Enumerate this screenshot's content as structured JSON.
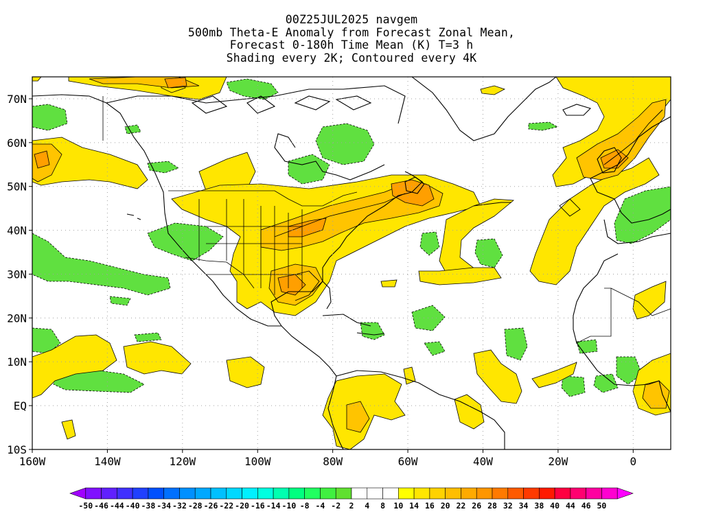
{
  "title": {
    "lines": [
      "00Z25JUL2025 navgem",
      "500mb Theta-E Anomaly from Forecast Zonal Mean,",
      "Forecast 0-180h Time Mean (K) T=3 h",
      "Shading every 2K; Contoured every 4K"
    ]
  },
  "map": {
    "domain": {
      "lon_min": -160,
      "lon_max": 10,
      "lat_min": -10,
      "lat_max": 75
    },
    "lat_ticks": [
      {
        "value": 70,
        "label": "70N"
      },
      {
        "value": 60,
        "label": "60N"
      },
      {
        "value": 50,
        "label": "50N"
      },
      {
        "value": 40,
        "label": "40N"
      },
      {
        "value": 30,
        "label": "30N"
      },
      {
        "value": 20,
        "label": "20N"
      },
      {
        "value": 10,
        "label": "10N"
      },
      {
        "value": 0,
        "label": "EQ"
      },
      {
        "value": -10,
        "label": "10S"
      }
    ],
    "lon_ticks": [
      {
        "value": -160,
        "label": "160W"
      },
      {
        "value": -140,
        "label": "140W"
      },
      {
        "value": -120,
        "label": "120W"
      },
      {
        "value": -100,
        "label": "100W"
      },
      {
        "value": -80,
        "label": "80W"
      },
      {
        "value": -60,
        "label": "60W"
      },
      {
        "value": -40,
        "label": "40W"
      },
      {
        "value": -20,
        "label": "20W"
      },
      {
        "value": 0,
        "label": "0"
      }
    ],
    "colors": {
      "pos_low": "#ffe600",
      "pos_mid": "#ffc400",
      "pos_high": "#ff9f00",
      "pos_peak": "#f08000",
      "neg_low": "#60e040",
      "coast": "#000000",
      "grid": "#a0a0a0"
    }
  },
  "colorbar": {
    "labels": [
      "-50",
      "-46",
      "-44",
      "-40",
      "-38",
      "-34",
      "-32",
      "-28",
      "-26",
      "-22",
      "-20",
      "-16",
      "-14",
      "-10",
      "-8",
      "-4",
      "-2",
      "2",
      "4",
      "8",
      "10",
      "14",
      "16",
      "20",
      "22",
      "26",
      "28",
      "32",
      "34",
      "38",
      "40",
      "44",
      "46",
      "50"
    ],
    "colors": [
      "#a000ff",
      "#8010ff",
      "#6020ff",
      "#4030ff",
      "#2040ff",
      "#0050ff",
      "#0070ff",
      "#0090ff",
      "#00a8ff",
      "#00c0ff",
      "#00d8ff",
      "#00f0ff",
      "#00ffe0",
      "#00ffb0",
      "#00ff80",
      "#20ff60",
      "#40f040",
      "#60e030",
      "#ffffff",
      "#ffffff",
      "#ffffff",
      "#ffff00",
      "#ffe600",
      "#ffd200",
      "#ffbe00",
      "#ffaa00",
      "#ff9600",
      "#ff7a00",
      "#ff5a00",
      "#ff3a00",
      "#ff1a00",
      "#ff0040",
      "#ff0070",
      "#ff00a0",
      "#ff00d0",
      "#ff00ff"
    ]
  }
}
